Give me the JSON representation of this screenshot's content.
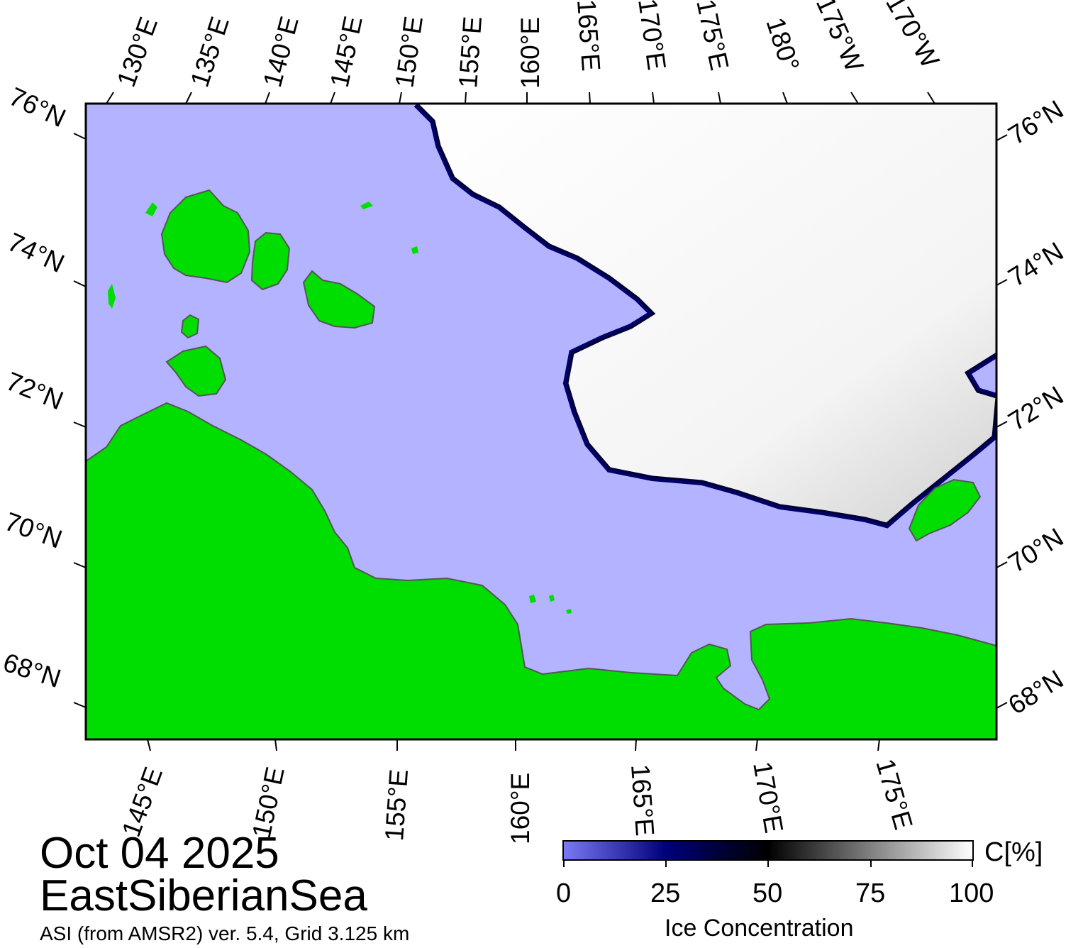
{
  "date": "Oct 04 2025",
  "region": "EastSiberianSea",
  "source": "ASI (from AMSR2) ver. 5.4,  Grid 3.125 km",
  "colorbar": {
    "title": "Ice Concentration",
    "unit": "C[%]",
    "ticks": [
      "0",
      "25",
      "50",
      "75",
      "100"
    ],
    "stops": [
      "#7a7af5",
      "#00007a",
      "#000000",
      "#808080",
      "#ffffff"
    ]
  },
  "colors": {
    "ocean": "#b3b3ff",
    "land": "#00dd00",
    "ice": "#ffffff",
    "ice_edge": "#000066"
  },
  "labels": {
    "top_longitudes": [
      "130°E",
      "135°E",
      "140°E",
      "145°E",
      "150°E",
      "155°E",
      "160°E",
      "165°E",
      "170°E",
      "175°E",
      "180°",
      "175°W",
      "170°W"
    ],
    "bottom_longitudes": [
      "145°E",
      "150°E",
      "155°E",
      "160°E",
      "165°E",
      "170°E",
      "175°E"
    ],
    "left_latitudes": [
      "76°N",
      "74°N",
      "72°N",
      "70°N",
      "68°N"
    ],
    "right_latitudes": [
      "76°N",
      "74°N",
      "72°N",
      "70°N",
      "68°N"
    ]
  }
}
